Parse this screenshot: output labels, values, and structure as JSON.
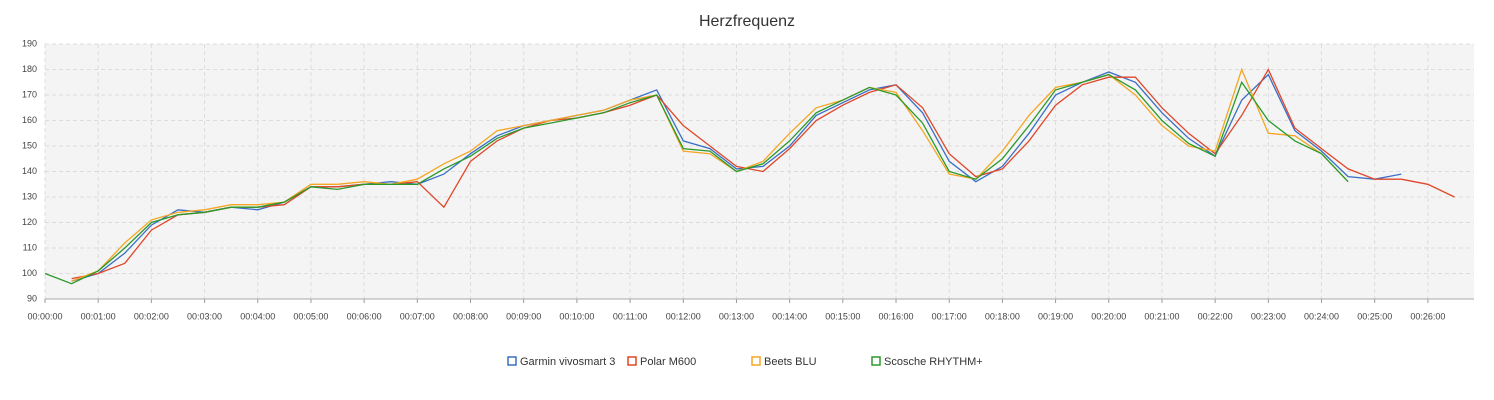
{
  "chart_data": {
    "type": "line",
    "title": "Herzfrequenz",
    "x": [
      0,
      30,
      60,
      90,
      120,
      150,
      180,
      210,
      240,
      270,
      300,
      330,
      360,
      390,
      420,
      450,
      480,
      510,
      540,
      570,
      600,
      630,
      660,
      690,
      720,
      750,
      780,
      810,
      840,
      870,
      900,
      930,
      960,
      990,
      1020,
      1050,
      1080,
      1110,
      1140,
      1170,
      1200,
      1230,
      1260,
      1290,
      1320,
      1350,
      1380,
      1410,
      1440,
      1470,
      1500,
      1530,
      1560,
      1590
    ],
    "series": [
      {
        "name": "Garmin vivosmart 3",
        "color": "#3b6fc6",
        "values": [
          null,
          97,
          100,
          108,
          119,
          125,
          124,
          126,
          125,
          128,
          134,
          134,
          135,
          136,
          135,
          139,
          147,
          154,
          158,
          160,
          162,
          164,
          168,
          172,
          152,
          149,
          141,
          142,
          150,
          162,
          167,
          172,
          174,
          163,
          144,
          136,
          142,
          155,
          170,
          175,
          179,
          175,
          163,
          153,
          146,
          168,
          178,
          156,
          148,
          138,
          137,
          139,
          null,
          null
        ]
      },
      {
        "name": "Polar M600",
        "color": "#e0472a",
        "values": [
          null,
          98,
          100,
          104,
          117,
          123,
          124,
          126,
          126,
          127,
          134,
          134,
          135,
          135,
          136,
          126,
          144,
          152,
          157,
          160,
          161,
          163,
          166,
          170,
          158,
          150,
          142,
          140,
          149,
          160,
          166,
          171,
          174,
          165,
          147,
          138,
          141,
          152,
          166,
          174,
          177,
          177,
          165,
          155,
          147,
          162,
          180,
          157,
          149,
          141,
          137,
          137,
          135,
          130
        ]
      },
      {
        "name": "Beets BLU",
        "color": "#f5a623",
        "values": [
          null,
          97,
          101,
          112,
          121,
          124,
          125,
          127,
          127,
          128,
          135,
          135,
          136,
          135,
          137,
          143,
          148,
          156,
          158,
          160,
          162,
          164,
          168,
          170,
          148,
          147,
          140,
          144,
          155,
          165,
          168,
          173,
          171,
          156,
          139,
          137,
          148,
          162,
          173,
          175,
          178,
          170,
          158,
          150,
          148,
          180,
          155,
          154,
          147,
          136,
          null,
          null,
          null,
          null
        ]
      },
      {
        "name": "Scosche RHYTHM+",
        "color": "#2a9a2a",
        "values": [
          100,
          96,
          101,
          110,
          120,
          123,
          124,
          126,
          126,
          128,
          134,
          133,
          135,
          135,
          135,
          141,
          146,
          153,
          157,
          159,
          161,
          163,
          167,
          170,
          149,
          148,
          140,
          143,
          152,
          163,
          168,
          173,
          170,
          159,
          140,
          137,
          145,
          158,
          172,
          175,
          178,
          172,
          160,
          151,
          146,
          175,
          160,
          152,
          147,
          136,
          null,
          null,
          null,
          null
        ]
      }
    ],
    "xlim": [
      0,
      1612
    ],
    "xticks": [
      {
        "value": 0,
        "label": "00:00:00"
      },
      {
        "value": 60,
        "label": "00:01:00"
      },
      {
        "value": 120,
        "label": "00:02:00"
      },
      {
        "value": 180,
        "label": "00:03:00"
      },
      {
        "value": 240,
        "label": "00:04:00"
      },
      {
        "value": 300,
        "label": "00:05:00"
      },
      {
        "value": 360,
        "label": "00:06:00"
      },
      {
        "value": 420,
        "label": "00:07:00"
      },
      {
        "value": 480,
        "label": "00:08:00"
      },
      {
        "value": 540,
        "label": "00:09:00"
      },
      {
        "value": 600,
        "label": "00:10:00"
      },
      {
        "value": 660,
        "label": "00:11:00"
      },
      {
        "value": 720,
        "label": "00:12:00"
      },
      {
        "value": 780,
        "label": "00:13:00"
      },
      {
        "value": 840,
        "label": "00:14:00"
      },
      {
        "value": 900,
        "label": "00:15:00"
      },
      {
        "value": 960,
        "label": "00:16:00"
      },
      {
        "value": 1020,
        "label": "00:17:00"
      },
      {
        "value": 1080,
        "label": "00:18:00"
      },
      {
        "value": 1140,
        "label": "00:19:00"
      },
      {
        "value": 1200,
        "label": "00:20:00"
      },
      {
        "value": 1260,
        "label": "00:21:00"
      },
      {
        "value": 1320,
        "label": "00:22:00"
      },
      {
        "value": 1380,
        "label": "00:23:00"
      },
      {
        "value": 1440,
        "label": "00:24:00"
      },
      {
        "value": 1500,
        "label": "00:25:00"
      },
      {
        "value": 1560,
        "label": "00:26:00"
      }
    ],
    "ylim": [
      90,
      190
    ],
    "yticks": [
      90,
      100,
      110,
      120,
      130,
      140,
      150,
      160,
      170,
      180,
      190
    ],
    "grid": true
  }
}
